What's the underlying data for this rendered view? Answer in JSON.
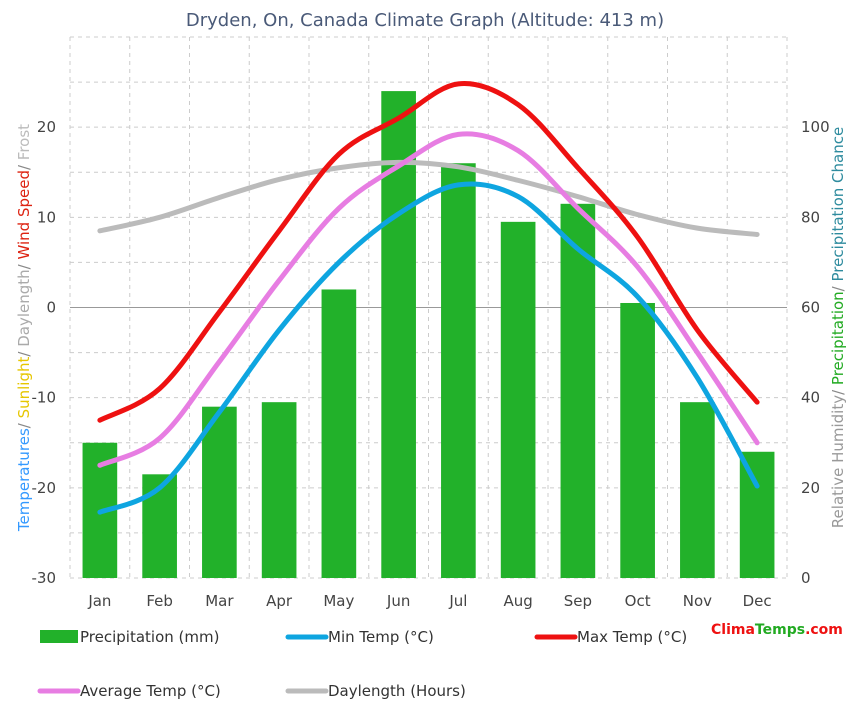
{
  "chart_data": {
    "type": "bar",
    "title": "Dryden, On, Canada Climate Graph (Altitude: 413 m)",
    "categories": [
      "Jan",
      "Feb",
      "Mar",
      "Apr",
      "May",
      "Jun",
      "Jul",
      "Aug",
      "Sep",
      "Oct",
      "Nov",
      "Dec"
    ],
    "left_axis": {
      "ylim": [
        -30,
        30
      ],
      "ticks": [
        -30,
        -20,
        -10,
        0,
        10,
        20
      ],
      "title_parts": [
        {
          "text": "Temperatures",
          "color": "#3399ff"
        },
        {
          "text": "/ ",
          "color": "#888888"
        },
        {
          "text": "Sunlight",
          "color": "#e6c600"
        },
        {
          "text": "/ ",
          "color": "#888888"
        },
        {
          "text": "Daylength",
          "color": "#aaaaaa"
        },
        {
          "text": "/ ",
          "color": "#888888"
        },
        {
          "text": "Wind Speed",
          "color": "#dd2211"
        },
        {
          "text": "/ ",
          "color": "#888888"
        },
        {
          "text": "Frost",
          "color": "#bbbbbb"
        }
      ]
    },
    "right_axis": {
      "ylim": [
        0,
        120
      ],
      "ticks": [
        0,
        20,
        40,
        60,
        80,
        100
      ],
      "title_parts": [
        {
          "text": "Relative Humidity",
          "color": "#999999"
        },
        {
          "text": "/ ",
          "color": "#888888"
        },
        {
          "text": "Precipitation",
          "color": "#22aa22"
        },
        {
          "text": "/ ",
          "color": "#888888"
        },
        {
          "text": "Precipitation Chance",
          "color": "#2e8b9e"
        }
      ]
    },
    "series": [
      {
        "name": "Precipitation (mm)",
        "type": "bar",
        "axis": "right",
        "color": "#22b12a",
        "values": [
          30,
          23,
          38,
          39,
          64,
          108,
          92,
          79,
          83,
          61,
          39,
          28
        ]
      },
      {
        "name": "Min Temp (°C)",
        "type": "line",
        "axis": "left",
        "color": "#0ea5e0",
        "values": [
          -22.7,
          -20,
          -11.6,
          -2.5,
          5,
          10.4,
          13.6,
          12.3,
          6.5,
          1.2,
          -7.8,
          -19.8
        ]
      },
      {
        "name": "Max Temp (°C)",
        "type": "line",
        "axis": "left",
        "color": "#ee1111",
        "values": [
          -12.5,
          -9,
          -0.5,
          8.5,
          17,
          21,
          24.8,
          22.5,
          15.5,
          7.8,
          -2.5,
          -10.5
        ]
      },
      {
        "name": "Average Temp (°C)",
        "type": "line",
        "axis": "left",
        "color": "#e77de2",
        "values": [
          -17.5,
          -14.5,
          -6,
          3,
          11,
          15.7,
          19.2,
          17.4,
          11,
          4.5,
          -5,
          -15
        ]
      },
      {
        "name": "Daylength (Hours)",
        "type": "line",
        "axis": "left",
        "color": "#bbbbbb",
        "values": [
          8.5,
          10,
          12.2,
          14.2,
          15.5,
          16.1,
          15.6,
          14.1,
          12.3,
          10.3,
          8.8,
          8.1
        ]
      }
    ],
    "legend": {
      "placement": "bottom",
      "items": [
        {
          "label": "Precipitation (mm)",
          "color": "#22b12a",
          "kind": "bar"
        },
        {
          "label": "Min Temp (°C)",
          "color": "#0ea5e0",
          "kind": "line"
        },
        {
          "label": "Max Temp (°C)",
          "color": "#ee1111",
          "kind": "line"
        },
        {
          "label": "Average Temp (°C)",
          "color": "#e77de2",
          "kind": "line"
        },
        {
          "label": "Daylength (Hours)",
          "color": "#bbbbbb",
          "kind": "line"
        }
      ]
    },
    "grid": true,
    "brand": {
      "part1": "Clima",
      "part2": "Temps",
      "part3": ".com",
      "color1": "#ee1111",
      "color2": "#22aa22"
    }
  }
}
